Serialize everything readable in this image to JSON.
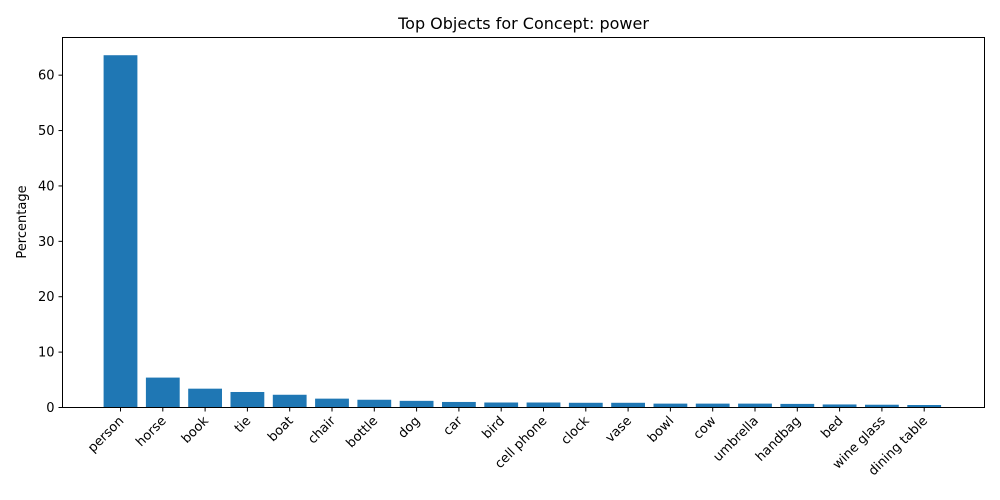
{
  "chart_data": {
    "type": "bar",
    "title": "Top Objects for Concept: power",
    "xlabel": "",
    "ylabel": "Percentage",
    "ylim": [
      0,
      66.8
    ],
    "yticks": [
      0,
      10,
      20,
      30,
      40,
      50,
      60
    ],
    "grid": false,
    "bar_color": "#1f77b4",
    "categories": [
      "person",
      "horse",
      "book",
      "tie",
      "boat",
      "chair",
      "bottle",
      "dog",
      "car",
      "bird",
      "cell phone",
      "clock",
      "vase",
      "bowl",
      "cow",
      "umbrella",
      "handbag",
      "bed",
      "wine glass",
      "dining table"
    ],
    "values": [
      63.6,
      5.4,
      3.4,
      2.8,
      2.3,
      1.6,
      1.4,
      1.2,
      1.0,
      0.9,
      0.9,
      0.85,
      0.85,
      0.7,
      0.7,
      0.7,
      0.65,
      0.55,
      0.5,
      0.45
    ]
  }
}
